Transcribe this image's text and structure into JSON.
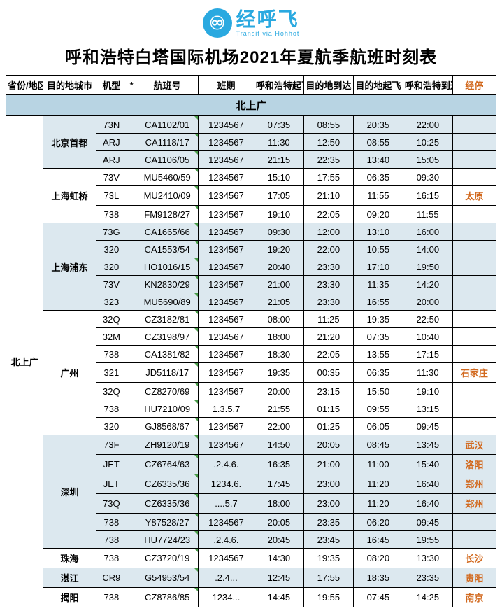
{
  "logo": {
    "glyph": "♾",
    "text": "经呼飞",
    "sub": "Transit via Hohhot"
  },
  "title": "呼和浩特白塔国际机场2021年夏航季航班时刻表",
  "headers": {
    "region": "省份/地区",
    "dest": "目的地城市",
    "aircraft": "机型",
    "star": "*",
    "flight": "航班号",
    "days": "班期",
    "dep_hhht": "呼和浩特起飞",
    "arr_dest": "目的地到达",
    "dep_dest": "目的地起飞",
    "arr_hhht": "呼和浩特到达",
    "via": "经停"
  },
  "section": {
    "label": "北上广",
    "region": "北上广"
  },
  "groups": [
    {
      "dest": "北京首都",
      "shaded": true,
      "rows": [
        {
          "ac": "73N",
          "fl": "CA1102/01",
          "dy": "1234567",
          "t1": "07:35",
          "t2": "08:55",
          "t3": "20:35",
          "t4": "22:00",
          "via": ""
        },
        {
          "ac": "ARJ",
          "fl": "CA1118/17",
          "dy": "1234567",
          "t1": "11:30",
          "t2": "12:50",
          "t3": "08:55",
          "t4": "10:25",
          "via": ""
        },
        {
          "ac": "ARJ",
          "fl": "CA1106/05",
          "dy": "1234567",
          "t1": "21:15",
          "t2": "22:35",
          "t3": "13:40",
          "t4": "15:05",
          "via": ""
        }
      ]
    },
    {
      "dest": "上海虹桥",
      "shaded": false,
      "rows": [
        {
          "ac": "73V",
          "fl": "MU5460/59",
          "dy": "1234567",
          "t1": "15:10",
          "t2": "17:55",
          "t3": "06:35",
          "t4": "09:30",
          "via": ""
        },
        {
          "ac": "73L",
          "fl": "MU2410/09",
          "dy": "1234567",
          "t1": "17:05",
          "t2": "21:10",
          "t3": "11:55",
          "t4": "16:15",
          "via": "太原"
        },
        {
          "ac": "738",
          "fl": "FM9128/27",
          "dy": "1234567",
          "t1": "19:10",
          "t2": "22:05",
          "t3": "09:20",
          "t4": "11:55",
          "via": ""
        }
      ]
    },
    {
      "dest": "上海浦东",
      "shaded": true,
      "rows": [
        {
          "ac": "73G",
          "fl": "CA1665/66",
          "dy": "1234567",
          "t1": "09:30",
          "t2": "12:00",
          "t3": "13:10",
          "t4": "16:00",
          "via": ""
        },
        {
          "ac": "320",
          "fl": "CA1553/54",
          "dy": "1234567",
          "t1": "19:20",
          "t2": "22:00",
          "t3": "10:55",
          "t4": "14:00",
          "via": ""
        },
        {
          "ac": "320",
          "fl": "HO1016/15",
          "dy": "1234567",
          "t1": "20:40",
          "t2": "23:30",
          "t3": "17:10",
          "t4": "19:50",
          "via": ""
        },
        {
          "ac": "73V",
          "fl": "KN2830/29",
          "dy": "1234567",
          "t1": "21:00",
          "t2": "23:30",
          "t3": "11:35",
          "t4": "14:20",
          "via": ""
        },
        {
          "ac": "323",
          "fl": "MU5690/89",
          "dy": "1234567",
          "t1": "21:05",
          "t2": "23:30",
          "t3": "16:55",
          "t4": "20:00",
          "via": ""
        }
      ]
    },
    {
      "dest": "广州",
      "shaded": false,
      "rows": [
        {
          "ac": "32Q",
          "fl": "CZ3182/81",
          "dy": "1234567",
          "t1": "08:00",
          "t2": "11:25",
          "t3": "19:35",
          "t4": "22:50",
          "via": ""
        },
        {
          "ac": "32M",
          "fl": "CZ3198/97",
          "dy": "1234567",
          "t1": "18:00",
          "t2": "21:20",
          "t3": "07:35",
          "t4": "10:40",
          "via": ""
        },
        {
          "ac": "738",
          "fl": "CA1381/82",
          "dy": "1234567",
          "t1": "18:30",
          "t2": "22:05",
          "t3": "13:55",
          "t4": "17:15",
          "via": ""
        },
        {
          "ac": "321",
          "fl": "JD5118/17",
          "dy": "1234567",
          "t1": "19:35",
          "t2": "00:35",
          "t3": "06:35",
          "t4": "11:30",
          "via": "石家庄"
        },
        {
          "ac": "32Q",
          "fl": "CZ8270/69",
          "dy": "1234567",
          "t1": "20:00",
          "t2": "23:15",
          "t3": "15:50",
          "t4": "19:10",
          "via": ""
        },
        {
          "ac": "738",
          "fl": "HU7210/09",
          "dy": "1.3.5.7",
          "t1": "21:55",
          "t2": "01:15",
          "t3": "09:55",
          "t4": "13:15",
          "via": ""
        },
        {
          "ac": "320",
          "fl": "GJ8568/67",
          "dy": "1234567",
          "t1": "22:00",
          "t2": "01:25",
          "t3": "06:05",
          "t4": "09:45",
          "via": ""
        }
      ]
    },
    {
      "dest": "深圳",
      "shaded": true,
      "rows": [
        {
          "ac": "73F",
          "fl": "ZH9120/19",
          "dy": "1234567",
          "t1": "14:50",
          "t2": "20:05",
          "t3": "08:45",
          "t4": "13:45",
          "via": "武汉"
        },
        {
          "ac": "JET",
          "fl": "CZ6764/63",
          "dy": ".2.4.6.",
          "t1": "16:35",
          "t2": "21:00",
          "t3": "11:00",
          "t4": "15:40",
          "via": "洛阳"
        },
        {
          "ac": "JET",
          "fl": "CZ6335/36",
          "dy": "1234.6.",
          "t1": "17:45",
          "t2": "23:00",
          "t3": "11:20",
          "t4": "16:40",
          "via": "郑州"
        },
        {
          "ac": "73Q",
          "fl": "CZ6335/36",
          "dy": "....5.7",
          "t1": "18:00",
          "t2": "23:00",
          "t3": "11:20",
          "t4": "16:40",
          "via": "郑州"
        },
        {
          "ac": "738",
          "fl": "Y87528/27",
          "dy": "1234567",
          "t1": "20:05",
          "t2": "23:35",
          "t3": "06:20",
          "t4": "09:45",
          "via": ""
        },
        {
          "ac": "738",
          "fl": "HU7724/23",
          "dy": ".2.4.6.",
          "t1": "20:45",
          "t2": "23:45",
          "t3": "16:45",
          "t4": "19:55",
          "via": ""
        }
      ]
    },
    {
      "dest": "珠海",
      "shaded": false,
      "rows": [
        {
          "ac": "738",
          "fl": "CZ3720/19",
          "dy": "1234567",
          "t1": "14:30",
          "t2": "19:35",
          "t3": "08:20",
          "t4": "13:30",
          "via": "长沙"
        }
      ]
    },
    {
      "dest": "湛江",
      "shaded": true,
      "rows": [
        {
          "ac": "CR9",
          "fl": "G54953/54",
          "dy": ".2.4...",
          "t1": "12:45",
          "t2": "17:55",
          "t3": "18:35",
          "t4": "23:35",
          "via": "贵阳"
        }
      ]
    },
    {
      "dest": "揭阳",
      "shaded": false,
      "rows": [
        {
          "ac": "738",
          "fl": "CZ8786/85",
          "dy": "1234...",
          "t1": "14:45",
          "t2": "19:55",
          "t3": "07:45",
          "t4": "14:25",
          "via": "南京"
        }
      ]
    }
  ]
}
